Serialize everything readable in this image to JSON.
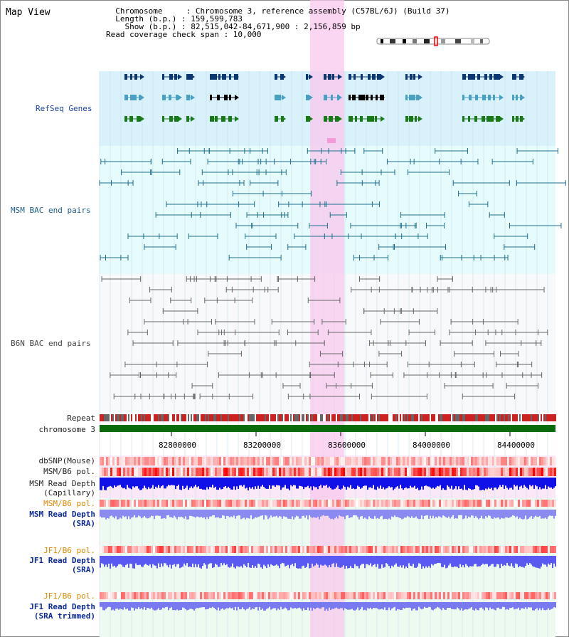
{
  "view": {
    "title": "Map View",
    "info_lines": [
      "  Chromosome     : Chromosome 3, reference assembly (C57BL/6J) (Build 37)",
      "  Length (b.p.) : 159,599,783",
      "    Show (b.p.) : 82,515,042-84,671,900 : 2,156,859 bp",
      "Read coverage check span : 10,000"
    ]
  },
  "tracks": {
    "refseq": "RefSeq Genes",
    "msm_bac": "MSM BAC end pairs",
    "b6n_bac": "B6N BAC end pairs",
    "repeat": "Repeat",
    "chromosome": "chromosome 3",
    "dbsnp": "dbSNP(Mouse)",
    "msm_b6_pol_1": "MSM/B6 pol.",
    "msm_depth_cap_1": "MSM Read Depth",
    "msm_depth_cap_2": "(Capillary)",
    "msm_b6_pol_2": "MSM/B6 pol.",
    "msm_depth_sra_1": "MSM Read Depth",
    "msm_depth_sra_2": "(SRA)",
    "jf1_b6_pol_1": "JF1/B6 pol.",
    "jf1_depth_sra_1": "JF1 Read Depth",
    "jf1_depth_sra_2": "(SRA)",
    "jf1_b6_pol_2": "JF1/B6 pol.",
    "jf1_depth_trim_1": "JF1 Read Depth",
    "jf1_depth_trim_2": "(SRA trimmed)"
  },
  "axis": {
    "ticks": [
      "82800000",
      "83200000",
      "83600000",
      "84000000",
      "84400000"
    ]
  },
  "colors": {
    "highlight": "#fbd6f3",
    "refseq_bg": "#d9f1fb",
    "msm_bg": "#e6fbfb",
    "b6n_bg": "#f7f9fb",
    "depth_blue": "#1010e8",
    "depth_light": "#8a8af0",
    "chromosome_green": "#0a6b0a"
  }
}
